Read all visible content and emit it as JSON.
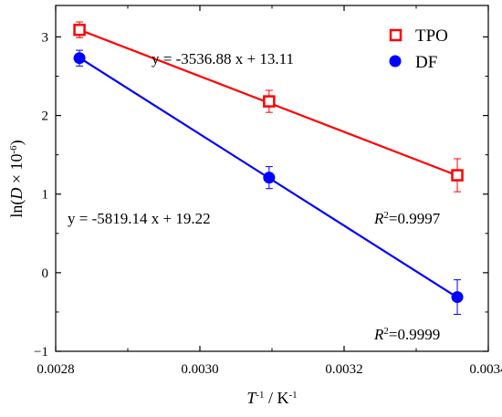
{
  "chart_data": {
    "type": "scatter",
    "xlabel": {
      "main": "T",
      "sup1": "-1",
      "unit": " / K",
      "sup2": "-1"
    },
    "ylabel": {
      "prefix": "ln(",
      "var": "D",
      "mid": " × 10",
      "sup": "-6",
      "suffix": ")"
    },
    "xlim": [
      0.0028,
      0.0034
    ],
    "ylim": [
      -1,
      3.4
    ],
    "xticks": [
      0.0028,
      0.003,
      0.0032,
      0.0034
    ],
    "xtick_labels": [
      "0.0028",
      "0.0030",
      "0.0032",
      "0.0034"
    ],
    "yticks": [
      -1,
      0,
      1,
      2,
      3
    ],
    "ytick_labels": [
      "−1",
      "0",
      "1",
      "2",
      "3"
    ],
    "grid": false,
    "legend_position": "top-right",
    "series": [
      {
        "name": "TPO",
        "color": "#ff0000",
        "marker": "open-square",
        "x": [
          0.002833,
          0.003096,
          0.003357
        ],
        "y": [
          3.09,
          2.18,
          1.24
        ],
        "err": [
          0.1,
          0.14,
          0.21
        ],
        "fit": {
          "slope": -3536.88,
          "intercept": 13.11
        },
        "equation": "y = -3536.88 x + 13.11",
        "r2_value": "=0.9997"
      },
      {
        "name": "DF",
        "color": "#0000ff",
        "marker": "filled-circle",
        "x": [
          0.002833,
          0.003096,
          0.003357
        ],
        "y": [
          2.73,
          1.21,
          -0.31
        ],
        "err": [
          0.1,
          0.14,
          0.22
        ],
        "fit": {
          "slope": -5819.14,
          "intercept": 19.22
        },
        "equation": "y = -5819.14 x + 19.22",
        "r2_value": "=0.9999"
      }
    ],
    "r2_label": {
      "var": "R",
      "sup": "2"
    }
  }
}
